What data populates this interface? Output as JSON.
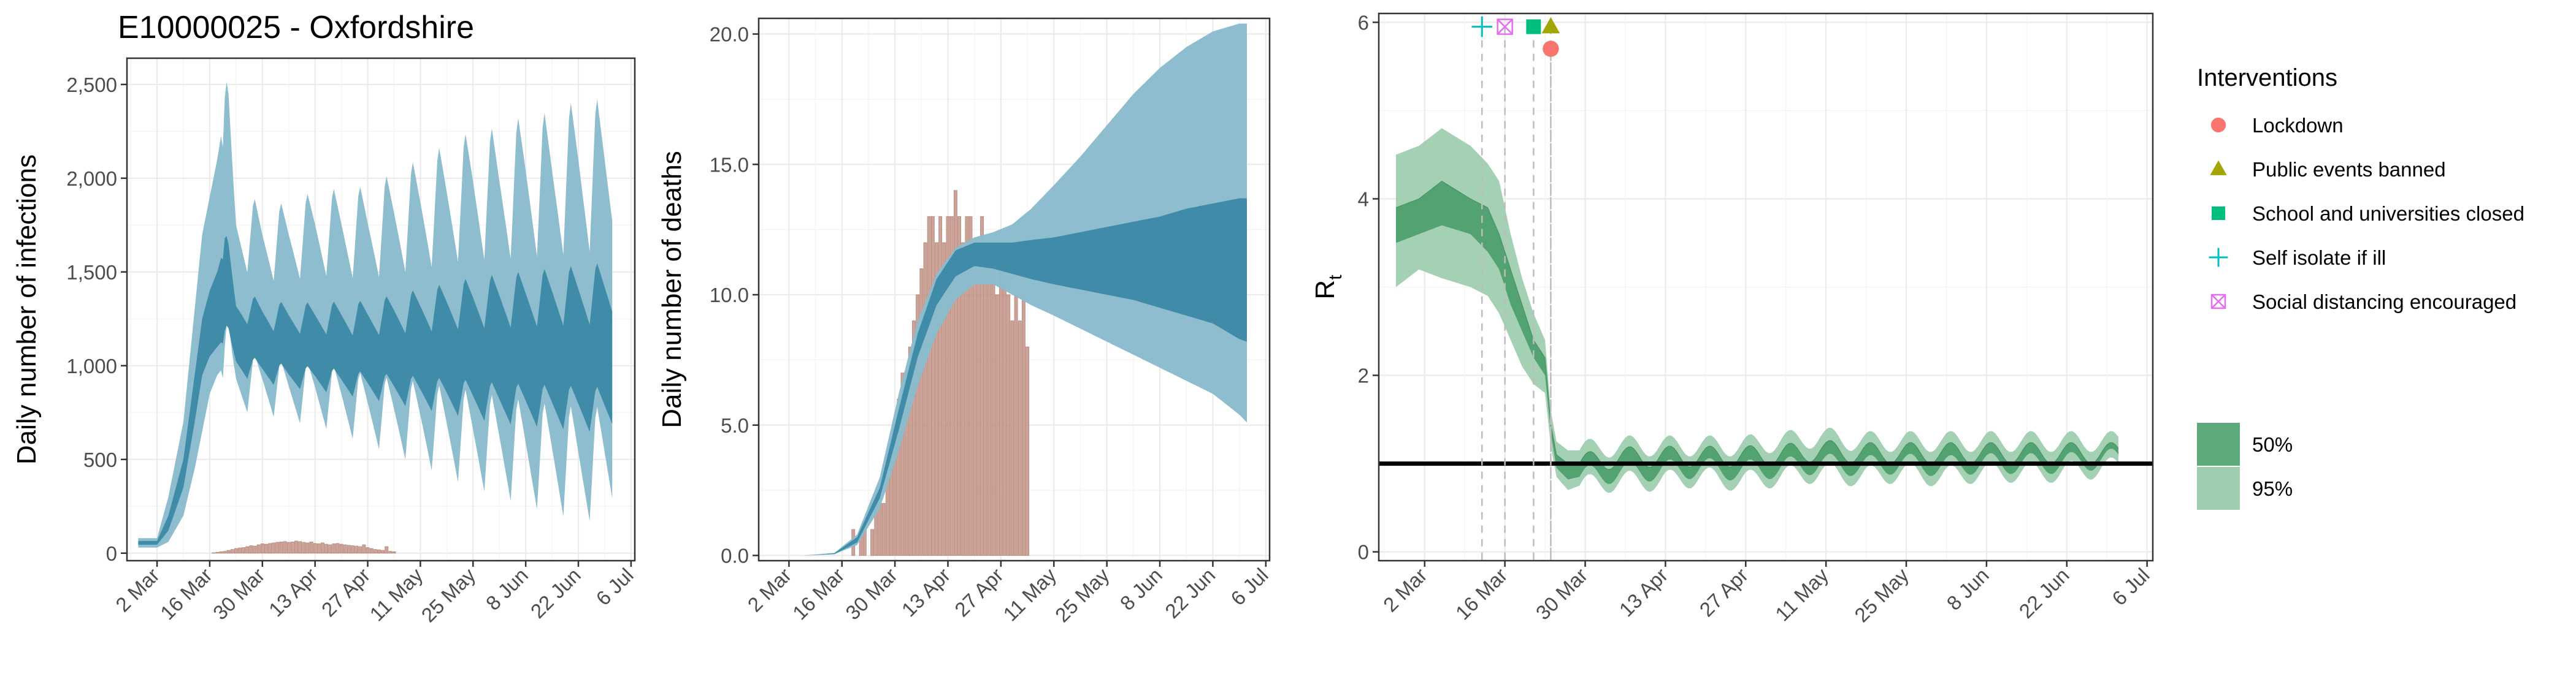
{
  "title": "E10000025 - Oxfordshire",
  "colors": {
    "band_outer": "#8bbccd",
    "band_inner": "#3e8aa6",
    "bars": "#c79a8d",
    "bar_edge": "#b2796a",
    "rt_outer": "#9fcdb0",
    "rt_inner": "#4e9f6f",
    "rt_line": "#2e7d4f"
  },
  "chart_data": [
    {
      "type": "area",
      "ylabel": "Daily number of infections",
      "ylim": [
        -40,
        2640
      ],
      "y_ticks": [
        0,
        500,
        1000,
        1500,
        2000,
        2500
      ],
      "y_tick_labels": [
        "0",
        "500",
        "1,000",
        "1,500",
        "2,000",
        "2,500"
      ],
      "x_ticks": [
        "2 Mar",
        "16 Mar",
        "30 Mar",
        "13 Apr",
        "27 Apr",
        "11 May",
        "25 May",
        "8 Jun",
        "22 Jun",
        "6 Jul"
      ],
      "x_range": [
        "2020-02-23",
        "2020-07-07"
      ],
      "series": [
        {
          "band": "95%",
          "x": [
            "2020-02-26",
            "2020-03-02",
            "2020-03-05",
            "2020-03-09",
            "2020-03-12",
            "2020-03-14",
            "2020-03-16",
            "2020-03-18",
            "2020-03-20",
            "2020-03-23",
            "2020-03-26",
            "2020-03-30",
            "2020-04-06",
            "2020-04-13",
            "2020-04-20",
            "2020-04-27",
            "2020-05-04",
            "2020-05-11",
            "2020-05-18",
            "2020-05-25",
            "2020-06-01",
            "2020-06-08",
            "2020-06-15",
            "2020-06-22",
            "2020-06-29",
            "2020-07-01"
          ],
          "lower": [
            30,
            30,
            60,
            200,
            450,
            650,
            850,
            950,
            1000,
            870,
            880,
            870,
            830,
            820,
            780,
            730,
            690,
            650,
            600,
            560,
            520,
            480,
            450,
            420,
            420,
            420
          ],
          "upper": [
            80,
            80,
            300,
            700,
            1300,
            1700,
            1900,
            2100,
            2350,
            1700,
            1700,
            1650,
            1650,
            1700,
            1700,
            1700,
            1750,
            1800,
            1850,
            1900,
            1900,
            1950,
            1950,
            2000,
            2000,
            2000
          ]
        },
        {
          "band": "50%",
          "x": [
            "2020-02-26",
            "2020-03-02",
            "2020-03-05",
            "2020-03-09",
            "2020-03-12",
            "2020-03-14",
            "2020-03-16",
            "2020-03-18",
            "2020-03-20",
            "2020-03-23",
            "2020-03-26",
            "2020-03-30",
            "2020-04-06",
            "2020-04-13",
            "2020-04-20",
            "2020-04-27",
            "2020-05-04",
            "2020-05-11",
            "2020-05-18",
            "2020-05-25",
            "2020-06-01",
            "2020-06-08",
            "2020-06-15",
            "2020-06-22",
            "2020-06-29",
            "2020-07-01"
          ],
          "lower": [
            45,
            45,
            120,
            350,
            700,
            950,
            1050,
            1100,
            1150,
            1000,
            980,
            960,
            930,
            920,
            900,
            880,
            860,
            840,
            820,
            800,
            780,
            770,
            760,
            750,
            740,
            740
          ],
          "upper": [
            65,
            65,
            200,
            500,
            950,
            1250,
            1400,
            1500,
            1650,
            1300,
            1300,
            1270,
            1250,
            1250,
            1250,
            1250,
            1270,
            1290,
            1310,
            1330,
            1340,
            1350,
            1360,
            1370,
            1380,
            1380
          ]
        }
      ],
      "bars": {
        "x_start": "2020-03-17",
        "values": [
          2,
          5,
          8,
          10,
          15,
          20,
          25,
          28,
          30,
          35,
          40,
          38,
          45,
          50,
          48,
          52,
          55,
          58,
          60,
          62,
          58,
          60,
          65,
          62,
          58,
          55,
          60,
          52,
          50,
          55,
          48,
          45,
          50,
          52,
          48,
          45,
          42,
          40,
          38,
          35,
          45,
          30,
          25,
          20,
          18,
          15,
          35,
          10,
          8
        ]
      }
    },
    {
      "type": "area",
      "ylabel": "Daily number of deaths",
      "ylim": [
        -0.2,
        20.6
      ],
      "y_ticks": [
        0,
        5,
        10,
        15,
        20
      ],
      "y_tick_labels": [
        "0.0",
        "5.0",
        "10.0",
        "15.0",
        "20.0"
      ],
      "x_ticks": [
        "2 Mar",
        "16 Mar",
        "30 Mar",
        "13 Apr",
        "27 Apr",
        "11 May",
        "25 May",
        "8 Jun",
        "22 Jun",
        "6 Jul"
      ],
      "x_range": [
        "2020-02-23",
        "2020-07-07"
      ],
      "series": [
        {
          "band": "95%",
          "x": [
            "2020-02-26",
            "2020-03-06",
            "2020-03-14",
            "2020-03-20",
            "2020-03-26",
            "2020-03-31",
            "2020-04-05",
            "2020-04-10",
            "2020-04-15",
            "2020-04-20",
            "2020-04-25",
            "2020-04-30",
            "2020-05-05",
            "2020-05-11",
            "2020-05-18",
            "2020-05-25",
            "2020-06-01",
            "2020-06-08",
            "2020-06-15",
            "2020-06-22",
            "2020-06-29",
            "2020-07-01"
          ],
          "lower": [
            0,
            0,
            0.05,
            0.4,
            1.8,
            4.0,
            6.5,
            8.5,
            9.8,
            10.4,
            10.4,
            10.0,
            9.6,
            9.2,
            8.7,
            8.2,
            7.7,
            7.2,
            6.7,
            6.2,
            5.4,
            5.1
          ],
          "upper": [
            0,
            0,
            0.1,
            0.8,
            3.0,
            6.2,
            9.0,
            10.8,
            11.8,
            12.2,
            12.4,
            12.7,
            13.3,
            14.2,
            15.3,
            16.5,
            17.7,
            18.7,
            19.5,
            20.1,
            20.4,
            20.4
          ]
        },
        {
          "band": "50%",
          "x": [
            "2020-02-26",
            "2020-03-06",
            "2020-03-14",
            "2020-03-20",
            "2020-03-26",
            "2020-03-31",
            "2020-04-05",
            "2020-04-10",
            "2020-04-15",
            "2020-04-20",
            "2020-04-25",
            "2020-04-30",
            "2020-05-05",
            "2020-05-11",
            "2020-05-18",
            "2020-05-25",
            "2020-06-01",
            "2020-06-08",
            "2020-06-15",
            "2020-06-22",
            "2020-06-29",
            "2020-07-01"
          ],
          "lower": [
            0,
            0,
            0.05,
            0.5,
            2.2,
            4.8,
            7.6,
            9.6,
            10.7,
            11.1,
            11.0,
            10.8,
            10.6,
            10.4,
            10.2,
            10.0,
            9.8,
            9.5,
            9.2,
            8.9,
            8.3,
            8.2
          ],
          "upper": [
            0,
            0,
            0.08,
            0.7,
            2.6,
            5.6,
            8.5,
            10.6,
            11.7,
            12.0,
            12.0,
            12.0,
            12.1,
            12.2,
            12.4,
            12.6,
            12.8,
            13.0,
            13.3,
            13.5,
            13.7,
            13.7
          ]
        }
      ],
      "bars": {
        "x_start": "2020-03-18",
        "values": [
          0,
          1,
          0,
          1,
          1,
          0,
          1,
          2,
          2,
          2,
          3,
          4,
          5,
          6,
          7,
          7,
          8,
          9,
          10,
          11,
          12,
          13,
          13,
          12,
          13,
          12,
          13,
          13,
          14,
          13,
          12,
          13,
          13,
          12,
          11,
          13,
          12,
          12,
          11,
          10,
          12,
          11,
          10,
          9,
          10,
          9,
          10,
          8
        ]
      }
    },
    {
      "type": "area",
      "ylabel": "R",
      "ylabel_subscript": "t",
      "ylim": [
        -0.1,
        6.1
      ],
      "y_ticks": [
        0,
        2,
        4,
        6
      ],
      "y_tick_labels": [
        "0",
        "2",
        "4",
        "6"
      ],
      "x_ticks": [
        "2 Mar",
        "16 Mar",
        "30 Mar",
        "13 Apr",
        "27 Apr",
        "11 May",
        "25 May",
        "8 Jun",
        "22 Jun",
        "6 Jul"
      ],
      "x_range": [
        "2020-02-23",
        "2020-07-07"
      ],
      "reference_line": 1,
      "series": [
        {
          "band": "95%",
          "x": [
            "2020-02-26",
            "2020-03-01",
            "2020-03-05",
            "2020-03-10",
            "2020-03-13",
            "2020-03-15",
            "2020-03-17",
            "2020-03-19",
            "2020-03-21",
            "2020-03-23",
            "2020-03-24",
            "2020-03-25",
            "2020-03-27",
            "2020-03-29",
            "2020-04-05",
            "2020-04-12",
            "2020-04-19",
            "2020-04-26",
            "2020-05-03",
            "2020-05-10",
            "2020-05-17",
            "2020-05-24",
            "2020-05-31",
            "2020-06-07",
            "2020-06-14",
            "2020-06-21",
            "2020-06-28",
            "2020-07-01"
          ],
          "lower": [
            3.0,
            3.2,
            3.1,
            3.0,
            2.9,
            2.7,
            2.4,
            2.1,
            1.9,
            1.8,
            1.2,
            0.85,
            0.7,
            0.75,
            0.8,
            0.8,
            0.85,
            0.8,
            0.85,
            0.9,
            0.85,
            0.9,
            0.85,
            0.9,
            0.9,
            0.9,
            0.95,
            0.95
          ],
          "upper": [
            4.5,
            4.6,
            4.8,
            4.6,
            4.4,
            4.2,
            3.6,
            3.1,
            2.7,
            2.4,
            1.6,
            1.25,
            1.15,
            1.15,
            1.2,
            1.2,
            1.2,
            1.2,
            1.25,
            1.3,
            1.25,
            1.25,
            1.25,
            1.25,
            1.25,
            1.25,
            1.25,
            1.25
          ]
        },
        {
          "band": "50%",
          "x": [
            "2020-02-26",
            "2020-03-01",
            "2020-03-05",
            "2020-03-10",
            "2020-03-13",
            "2020-03-15",
            "2020-03-17",
            "2020-03-19",
            "2020-03-21",
            "2020-03-23",
            "2020-03-24",
            "2020-03-25",
            "2020-03-27",
            "2020-03-29",
            "2020-04-05",
            "2020-04-12",
            "2020-04-19",
            "2020-04-26",
            "2020-05-03",
            "2020-05-10",
            "2020-05-17",
            "2020-05-24",
            "2020-05-31",
            "2020-06-07",
            "2020-06-14",
            "2020-06-21",
            "2020-06-28",
            "2020-07-01"
          ],
          "lower": [
            3.5,
            3.6,
            3.7,
            3.6,
            3.4,
            3.2,
            2.8,
            2.5,
            2.2,
            2.0,
            1.35,
            0.95,
            0.82,
            0.85,
            0.9,
            0.92,
            0.95,
            0.92,
            0.95,
            1.0,
            0.97,
            1.0,
            0.97,
            1.0,
            1.0,
            1.0,
            1.05,
            1.05
          ],
          "upper": [
            3.9,
            4.0,
            4.2,
            4.0,
            3.9,
            3.6,
            3.2,
            2.8,
            2.4,
            2.2,
            1.45,
            1.1,
            1.0,
            1.0,
            1.07,
            1.08,
            1.08,
            1.08,
            1.1,
            1.15,
            1.12,
            1.12,
            1.12,
            1.12,
            1.12,
            1.12,
            1.12,
            1.12
          ]
        }
      ],
      "interventions": [
        {
          "label": "Self isolate if ill",
          "date": "2020-03-12",
          "marker": "plus",
          "color": "#00bfc4",
          "y": 5.95
        },
        {
          "label": "Social distancing encouraged",
          "date": "2020-03-16",
          "marker": "boxx",
          "color": "#e76bf3",
          "y": 5.95
        },
        {
          "label": "School and universities closed",
          "date": "2020-03-21",
          "marker": "square",
          "color": "#00bf7d",
          "y": 5.95
        },
        {
          "label": "Public events banned",
          "date": "2020-03-24",
          "marker": "triangle",
          "color": "#a3a500",
          "y": 5.95
        },
        {
          "label": "Lockdown",
          "date": "2020-03-24",
          "marker": "circle",
          "color": "#f8766d",
          "y": 5.7
        }
      ]
    }
  ],
  "legend": {
    "title": "Interventions",
    "items": [
      {
        "label": "Lockdown",
        "marker": "circle",
        "color": "#f8766d"
      },
      {
        "label": "Public events banned",
        "marker": "triangle",
        "color": "#a3a500"
      },
      {
        "label": "School and universities closed",
        "marker": "square",
        "color": "#00bf7d"
      },
      {
        "label": "Self isolate if ill",
        "marker": "plus",
        "color": "#00bfc4"
      },
      {
        "label": "Social distancing encouraged",
        "marker": "boxx",
        "color": "#e76bf3"
      }
    ],
    "bands": [
      {
        "label": "50%",
        "color": "#5faa7d"
      },
      {
        "label": "95%",
        "color": "#9fcdb0"
      }
    ]
  }
}
